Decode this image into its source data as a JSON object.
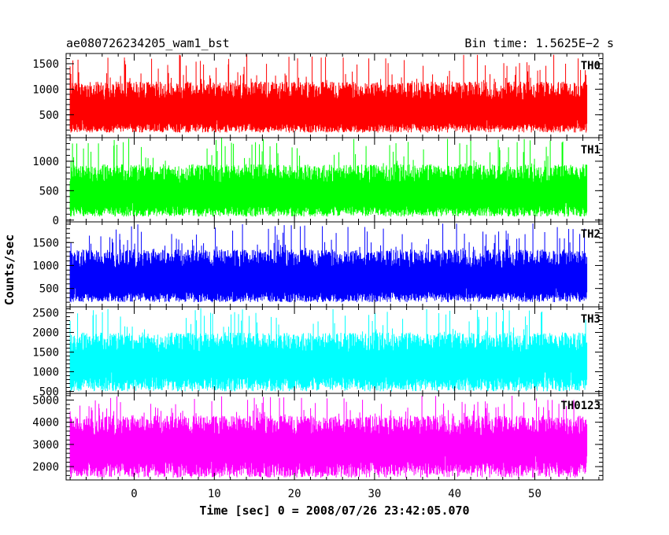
{
  "header": {
    "title": "ae080726234205_wam1_bst",
    "bin_time": "Bin time: 1.5625E−2 s"
  },
  "axes": {
    "xlabel": "Time [sec] 0 = 2008/07/26 23:42:05.070",
    "ylabel": "Counts/sec"
  },
  "chart_data": {
    "type": "line",
    "title": "ae080726234205_wam1_bst",
    "subtitle": "Bin time: 1.5625E−2 s",
    "xlabel": "Time [sec] 0 = 2008/07/26 23:42:05.070",
    "ylabel": "Counts/sec",
    "xlim": [
      -8.5,
      58.5
    ],
    "x_ticks": [
      0,
      10,
      20,
      30,
      40,
      50
    ],
    "x_data_range": [
      -8,
      56.5
    ],
    "bin_time_s": 0.015625,
    "grid": false,
    "legend": "none",
    "panels": [
      {
        "name": "TH0",
        "color": "#ff0000",
        "ylim": [
          50,
          1700
        ],
        "y_ticks": [
          500,
          1000,
          1500
        ],
        "base": 150,
        "typical_low": 350,
        "typical_high": 1150,
        "peak_max": 1680,
        "features": [
          {
            "t": -7.9,
            "y": 1300
          },
          {
            "t": 56.4,
            "y": 1280
          }
        ]
      },
      {
        "name": "TH1",
        "color": "#00ff00",
        "ylim": [
          -30,
          1400
        ],
        "y_ticks": [
          0,
          500,
          1000
        ],
        "base": 60,
        "typical_low": 250,
        "typical_high": 950,
        "peak_max": 1400,
        "features": [
          {
            "t": -7.9,
            "y": 1000
          }
        ]
      },
      {
        "name": "TH2",
        "color": "#0000ff",
        "ylim": [
          100,
          1950
        ],
        "y_ticks": [
          500,
          1000,
          1500
        ],
        "base": 200,
        "typical_low": 450,
        "typical_high": 1350,
        "peak_max": 1920,
        "features": [
          {
            "t": -7.9,
            "y": 1500
          }
        ]
      },
      {
        "name": "TH3",
        "color": "#00ffff",
        "ylim": [
          450,
          2650
        ],
        "y_ticks": [
          500,
          1000,
          1500,
          2000,
          2500
        ],
        "base": 500,
        "typical_low": 900,
        "typical_high": 2000,
        "peak_max": 2620,
        "features": [
          {
            "t": -7.9,
            "y": 1700
          }
        ]
      },
      {
        "name": "TH0123",
        "color": "#ff00ff",
        "ylim": [
          1400,
          5300
        ],
        "y_ticks": [
          2000,
          3000,
          4000,
          5000
        ],
        "base": 1500,
        "typical_low": 2300,
        "typical_high": 4300,
        "peak_max": 5200,
        "features": [
          {
            "t": -7.9,
            "y": 3600
          }
        ]
      }
    ]
  }
}
